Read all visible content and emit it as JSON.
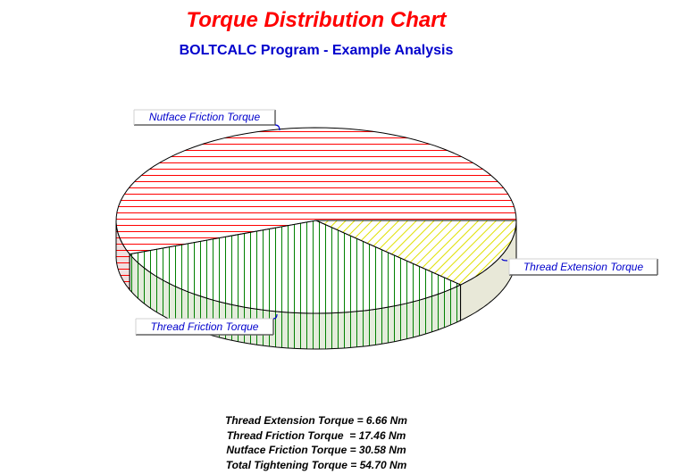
{
  "title": "Torque Distribution Chart",
  "subtitle": "BOLTCALC Program - Example Analysis",
  "chart_data": {
    "type": "pie",
    "three_d": true,
    "unit": "Nm",
    "slices": [
      {
        "name": "Nutface Friction Torque",
        "value": 30.58,
        "hatch": "horizontal",
        "color": "#ff0000"
      },
      {
        "name": "Thread Extension Torque",
        "value": 6.66,
        "hatch": "diagonal",
        "color": "#e6e600"
      },
      {
        "name": "Thread Friction Torque",
        "value": 17.46,
        "hatch": "vertical",
        "color": "#008000"
      }
    ]
  },
  "summary": [
    "Thread Extension Torque = 6.66 Nm",
    "Thread Friction Torque  = 17.46 Nm",
    "Nutface Friction Torque = 30.58 Nm",
    "Total Tightening Torque = 54.70 Nm"
  ]
}
